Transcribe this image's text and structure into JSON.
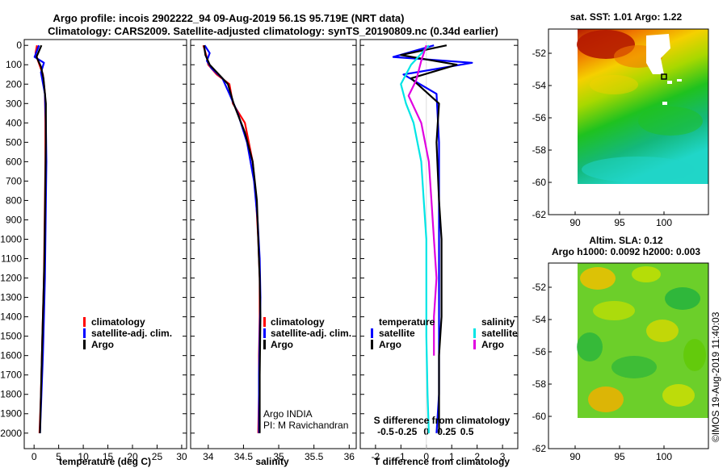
{
  "title": {
    "line1": "Argo profile: incois 2902222_94 09-Aug-2019 56.1S 95.719E (NRT data)",
    "line2": "Climatology: CARS2009. Satellite-adjusted climatology: synTS_20190809.nc (0.34d earlier)"
  },
  "colors": {
    "climatology": "#ff0000",
    "satellite": "#0000ff",
    "argo": "#000000",
    "sat_salinity": "#00e5e5",
    "argo_salinity": "#e000e0"
  },
  "chart_data": [
    {
      "type": "line",
      "id": "temperature",
      "xlabel": "temperature (deg C)",
      "xlim": [
        -2,
        31
      ],
      "ylim": [
        2080,
        -30
      ],
      "xticks": [
        0,
        5,
        10,
        15,
        20,
        25,
        30
      ],
      "yticks": [
        0,
        100,
        200,
        300,
        400,
        500,
        600,
        700,
        800,
        900,
        1000,
        1100,
        1200,
        1300,
        1400,
        1500,
        1600,
        1700,
        1800,
        1900,
        2000
      ],
      "legend": [
        "climatology",
        "satellite-adj. clim.",
        "Argo"
      ],
      "series": [
        {
          "name": "climatology",
          "color": "#ff0000",
          "x": [
            0.6,
            0.3,
            0.8,
            1.8,
            2.2,
            2.3,
            2.3,
            2.2,
            2.1,
            2.0,
            1.8,
            1.6,
            1.4,
            1.1
          ],
          "y": [
            0,
            40,
            80,
            150,
            250,
            400,
            600,
            800,
            1000,
            1200,
            1400,
            1600,
            1800,
            2000
          ]
        },
        {
          "name": "satellite-adj. clim.",
          "color": "#0000ff",
          "x": [
            1.0,
            0.1,
            2.0,
            1.4,
            2.2,
            2.4,
            2.5,
            2.4,
            2.3,
            2.2,
            2.0,
            1.8,
            1.5,
            1.2
          ],
          "y": [
            0,
            60,
            90,
            140,
            250,
            400,
            600,
            800,
            1000,
            1200,
            1400,
            1600,
            1800,
            2000
          ]
        },
        {
          "name": "Argo",
          "color": "#000000",
          "x": [
            1.5,
            0.5,
            1.4,
            1.9,
            2.4,
            2.4,
            2.3,
            2.2,
            2.1,
            1.9,
            1.7,
            1.5,
            1.2
          ],
          "y": [
            0,
            60,
            110,
            170,
            300,
            500,
            700,
            900,
            1100,
            1300,
            1500,
            1700,
            2000
          ]
        }
      ]
    },
    {
      "type": "line",
      "id": "salinity",
      "xlabel": "salinity",
      "xlim": [
        33.75,
        36.1
      ],
      "ylim": [
        2080,
        -30
      ],
      "xticks": [
        34,
        34.5,
        35,
        35.5,
        36
      ],
      "legend": [
        "climatology",
        "satellite-adj. clim.",
        "Argo"
      ],
      "annotations": [
        "Argo INDIA",
        "PI: M Ravichandran"
      ],
      "series": [
        {
          "name": "climatology",
          "color": "#ff0000",
          "x": [
            33.93,
            33.97,
            34.0,
            34.12,
            34.3,
            34.35,
            34.52,
            34.63,
            34.68,
            34.71,
            34.73,
            34.73,
            34.72,
            34.72,
            34.71
          ],
          "y": [
            0,
            50,
            100,
            150,
            200,
            300,
            400,
            600,
            800,
            1000,
            1200,
            1400,
            1600,
            1800,
            2000
          ]
        },
        {
          "name": "satellite-adj. clim.",
          "color": "#0000ff",
          "x": [
            33.95,
            34.02,
            33.98,
            34.05,
            34.2,
            34.3,
            34.42,
            34.55,
            34.65,
            34.7,
            34.73,
            34.74,
            34.73,
            34.72,
            34.72
          ],
          "y": [
            0,
            40,
            80,
            120,
            170,
            250,
            350,
            500,
            700,
            900,
            1100,
            1300,
            1500,
            1700,
            2000
          ]
        },
        {
          "name": "Argo",
          "color": "#000000",
          "x": [
            33.94,
            33.96,
            34.02,
            34.15,
            34.28,
            34.36,
            34.52,
            34.63,
            34.69,
            34.71,
            34.73,
            34.74,
            34.73,
            34.73
          ],
          "y": [
            0,
            50,
            100,
            150,
            200,
            300,
            450,
            600,
            800,
            1000,
            1200,
            1400,
            1700,
            2000
          ]
        }
      ]
    },
    {
      "type": "line",
      "id": "difference",
      "xlabel": "T difference from climatology",
      "xlabel2": "S difference from climatology",
      "xlim": [
        -2.6,
        3.6
      ],
      "ylim": [
        2080,
        -30
      ],
      "xticks": [
        -2,
        -1,
        0,
        1,
        2,
        3
      ],
      "xticks2": [
        {
          "label": "-0.5",
          "pos": -1.6
        },
        {
          "label": "-0.25",
          "pos": -0.8
        },
        {
          "label": "0",
          "pos": 0
        },
        {
          "label": "0.25",
          "pos": 0.8
        },
        {
          "label": "0.5",
          "pos": 1.6
        }
      ],
      "legend_groups": {
        "left": {
          "title": "temperature",
          "items": [
            "satellite",
            "Argo"
          ]
        },
        "right": {
          "title": "salinity",
          "items": [
            "satellite",
            "Argo"
          ]
        }
      },
      "series": [
        {
          "name": "satellite",
          "group": "temperature",
          "color": "#0000ff",
          "x": [
            0.3,
            -1.3,
            1.8,
            -0.9,
            0.4,
            0.5,
            0.5,
            0.5,
            0.5,
            0.5,
            0.5,
            0.5,
            0.4
          ],
          "y": [
            0,
            60,
            90,
            150,
            250,
            500,
            800,
            1000,
            1200,
            1400,
            1600,
            1800,
            2000
          ]
        },
        {
          "name": "Argo",
          "group": "temperature",
          "color": "#000000",
          "x": [
            0.8,
            -1.0,
            1.2,
            -0.6,
            0.5,
            0.4,
            0.5,
            0.6,
            0.6,
            0.6,
            0.5,
            0.5,
            0.5
          ],
          "y": [
            0,
            50,
            100,
            170,
            300,
            500,
            800,
            1000,
            1200,
            1400,
            1600,
            1800,
            2000
          ]
        },
        {
          "name": "satellite",
          "group": "salinity",
          "color": "#00e5e5",
          "x": [
            0.1,
            -0.6,
            -1.0,
            -0.8,
            -0.5,
            -0.2,
            -0.1,
            0.0,
            0.0,
            0.0,
            0.05,
            0.1
          ],
          "y": [
            0,
            100,
            200,
            300,
            400,
            600,
            800,
            1000,
            1200,
            1500,
            1800,
            2000
          ]
        },
        {
          "name": "Argo",
          "group": "salinity",
          "color": "#e000e0",
          "x": [
            0.0,
            -0.2,
            -0.4,
            -0.7,
            -0.2,
            0.1,
            0.2,
            0.3,
            0.4,
            0.3,
            0.3
          ],
          "y": [
            0,
            80,
            180,
            260,
            400,
            600,
            800,
            1000,
            1200,
            1400,
            1600
          ]
        }
      ]
    }
  ],
  "maps": [
    {
      "id": "sst",
      "title": "sat. SST: 1.01 Argo: 1.22",
      "xticks": [
        90,
        95,
        100
      ],
      "yticks": [
        -52,
        -54,
        -56,
        -58,
        -60,
        -62
      ],
      "xlim": [
        87,
        105
      ],
      "ylim": [
        -62,
        -50.5
      ]
    },
    {
      "id": "sla",
      "title1": "Altim. SLA: 0.12",
      "title2": "Argo h1000: 0.0092 h2000: 0.003",
      "xticks": [
        90,
        95,
        100
      ],
      "yticks": [
        -52,
        -54,
        -56,
        -58,
        -60,
        -62
      ],
      "xlim": [
        87,
        105
      ],
      "ylim": [
        -62,
        -50.5
      ]
    }
  ],
  "credit": "©IMOS 19-Aug-2019 11:40:03"
}
